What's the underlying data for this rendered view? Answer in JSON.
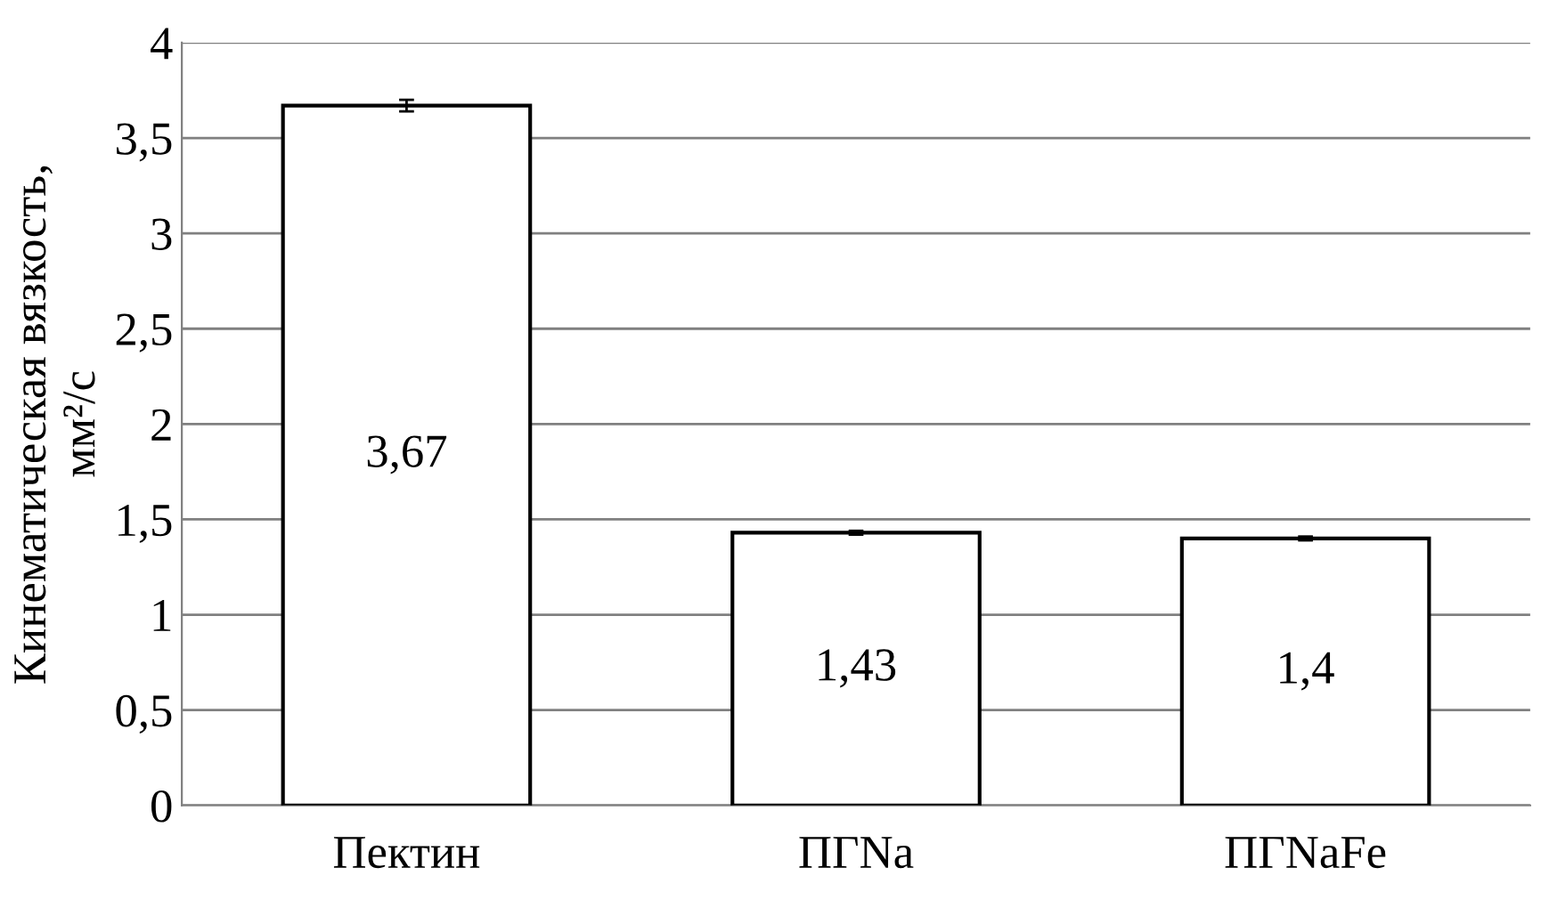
{
  "chart_data": {
    "type": "bar",
    "ylabel": "Кинематическая вязкость,\nмм²/с",
    "categories": [
      "Пектин",
      "ПГNa",
      "ПГNaFe"
    ],
    "values": [
      3.67,
      1.43,
      1.4
    ],
    "errors": [
      0.03,
      0.01,
      0.01
    ],
    "value_labels": [
      "3,67",
      "1,43",
      "1,4"
    ],
    "color": "#ffffff",
    "ylim": [
      0,
      4
    ],
    "yticks": [
      0,
      {
        "value": 0.5,
        "label": "0,5"
      },
      1,
      {
        "value": 1.5,
        "label": "1,5"
      },
      2,
      {
        "value": 2.5,
        "label": "2,5"
      },
      3,
      {
        "value": 3.5,
        "label": "3,5"
      },
      4
    ],
    "grid": "y",
    "legend": false
  }
}
